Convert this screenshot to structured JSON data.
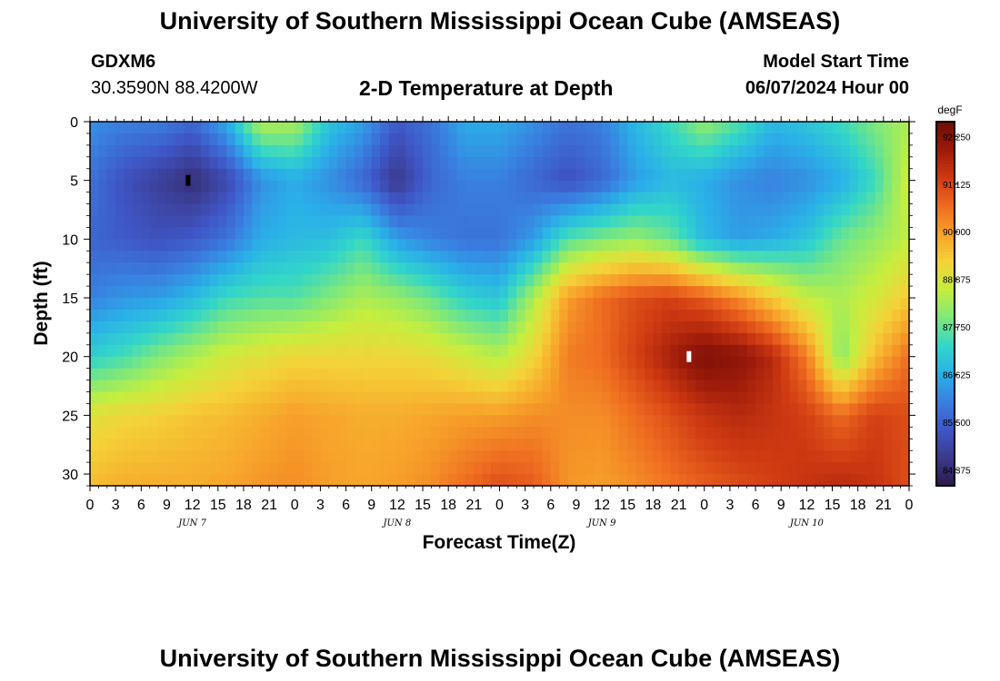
{
  "header": {
    "main_title": "University of Southern Mississippi Ocean Cube (AMSEAS)",
    "station_id": "GDXM6",
    "coordinates": "30.3590N  88.4200W",
    "plot_title": "2-D Temperature at Depth",
    "model_start_label": "Model Start Time",
    "model_start_value": "06/07/2024 Hour 00",
    "footer_title": "University of Southern Mississippi Ocean Cube (AMSEAS)"
  },
  "chart_data": {
    "type": "heatmap",
    "title": "2-D Temperature at Depth",
    "xlabel": "Forecast Time(Z)",
    "ylabel": "Depth (ft)",
    "units": "degF",
    "x_hours_range": [
      0,
      96
    ],
    "ylim": [
      0,
      31
    ],
    "y_ticks": [
      0,
      5,
      10,
      15,
      20,
      25,
      30
    ],
    "x_tick_labels": [
      "0",
      "3",
      "6",
      "9",
      "12",
      "15",
      "18",
      "21",
      "0",
      "3",
      "6",
      "9",
      "12",
      "15",
      "18",
      "21",
      "0",
      "3",
      "6",
      "9",
      "12",
      "15",
      "18",
      "21",
      "0",
      "3",
      "6",
      "9",
      "12",
      "15",
      "18",
      "21",
      "0"
    ],
    "day_labels": [
      {
        "label": "JUN 7",
        "hour": 12
      },
      {
        "label": "JUN 8",
        "hour": 36
      },
      {
        "label": "JUN 9",
        "hour": 60
      },
      {
        "label": "JUN 10",
        "hour": 84
      }
    ],
    "colorbar": {
      "min": 84.0,
      "max": 92.6,
      "ticks": [
        "92.250",
        "91.125",
        "90.000",
        "88.875",
        "87.750",
        "86.625",
        "85.500",
        "84.375"
      ],
      "colors": [
        "#2a1a4a",
        "#3b3a8c",
        "#3f56c6",
        "#3a7fe0",
        "#2ab0e8",
        "#32d6c9",
        "#7ee87a",
        "#c6ee3e",
        "#f4d238",
        "#f7a22a",
        "#ee6a20",
        "#cf3a12",
        "#9c1a0a",
        "#6e0e06"
      ]
    },
    "markers": [
      {
        "hour": 11.5,
        "depth": 5,
        "color": "#000000"
      },
      {
        "hour": 70.2,
        "depth": 20,
        "color": "#ffffff"
      }
    ],
    "profiles": {
      "hours": [
        0,
        4,
        8,
        12,
        16,
        20,
        24,
        28,
        32,
        36,
        40,
        44,
        48,
        52,
        56,
        60,
        64,
        68,
        72,
        76,
        80,
        84,
        88,
        92,
        96
      ],
      "depths": [
        0,
        5,
        10,
        15,
        20,
        25,
        31
      ],
      "temps_degF": [
        [
          86.2,
          85.8,
          85.6,
          86.0,
          87.2,
          89.0,
          89.6
        ],
        [
          86.0,
          85.2,
          85.4,
          86.3,
          87.5,
          89.2,
          89.8
        ],
        [
          86.0,
          84.8,
          85.2,
          86.4,
          88.0,
          89.3,
          89.8
        ],
        [
          85.6,
          84.4,
          85.4,
          86.8,
          88.4,
          89.5,
          89.8
        ],
        [
          86.6,
          85.0,
          85.8,
          87.4,
          88.8,
          89.6,
          89.9
        ],
        [
          88.5,
          86.2,
          86.6,
          87.6,
          89.0,
          89.8,
          90.1
        ],
        [
          88.4,
          86.6,
          86.8,
          87.6,
          89.2,
          90.0,
          90.2
        ],
        [
          87.0,
          86.2,
          86.9,
          88.0,
          89.2,
          89.9,
          90.0
        ],
        [
          86.4,
          85.6,
          87.4,
          88.4,
          89.2,
          89.8,
          89.9
        ],
        [
          85.4,
          84.6,
          86.4,
          88.2,
          89.2,
          89.8,
          90.0
        ],
        [
          85.8,
          85.6,
          86.0,
          87.8,
          89.1,
          89.9,
          90.2
        ],
        [
          86.6,
          86.0,
          85.8,
          87.2,
          88.8,
          90.0,
          90.6
        ],
        [
          86.6,
          86.0,
          85.8,
          87.0,
          88.5,
          90.0,
          91.0
        ],
        [
          86.2,
          85.6,
          86.4,
          88.4,
          89.2,
          90.2,
          90.8
        ],
        [
          85.8,
          85.2,
          87.6,
          90.0,
          90.4,
          90.2,
          90.1
        ],
        [
          86.0,
          85.6,
          88.0,
          90.6,
          90.6,
          90.2,
          90.0
        ],
        [
          86.8,
          86.4,
          88.2,
          91.0,
          91.2,
          90.6,
          90.2
        ],
        [
          87.4,
          86.8,
          87.8,
          91.2,
          91.8,
          91.0,
          90.5
        ],
        [
          88.2,
          86.6,
          86.8,
          90.8,
          92.4,
          91.4,
          90.8
        ],
        [
          87.6,
          86.2,
          86.4,
          90.2,
          92.2,
          91.6,
          91.0
        ],
        [
          86.8,
          86.0,
          86.6,
          89.4,
          91.6,
          91.4,
          91.2
        ],
        [
          87.0,
          86.2,
          87.0,
          88.6,
          90.4,
          91.2,
          91.4
        ],
        [
          87.4,
          86.6,
          87.8,
          88.4,
          88.0,
          90.6,
          91.6
        ],
        [
          88.0,
          87.4,
          88.2,
          88.8,
          89.6,
          91.2,
          91.4
        ],
        [
          88.4,
          88.8,
          88.6,
          89.4,
          90.6,
          91.0,
          91.0
        ]
      ]
    }
  }
}
